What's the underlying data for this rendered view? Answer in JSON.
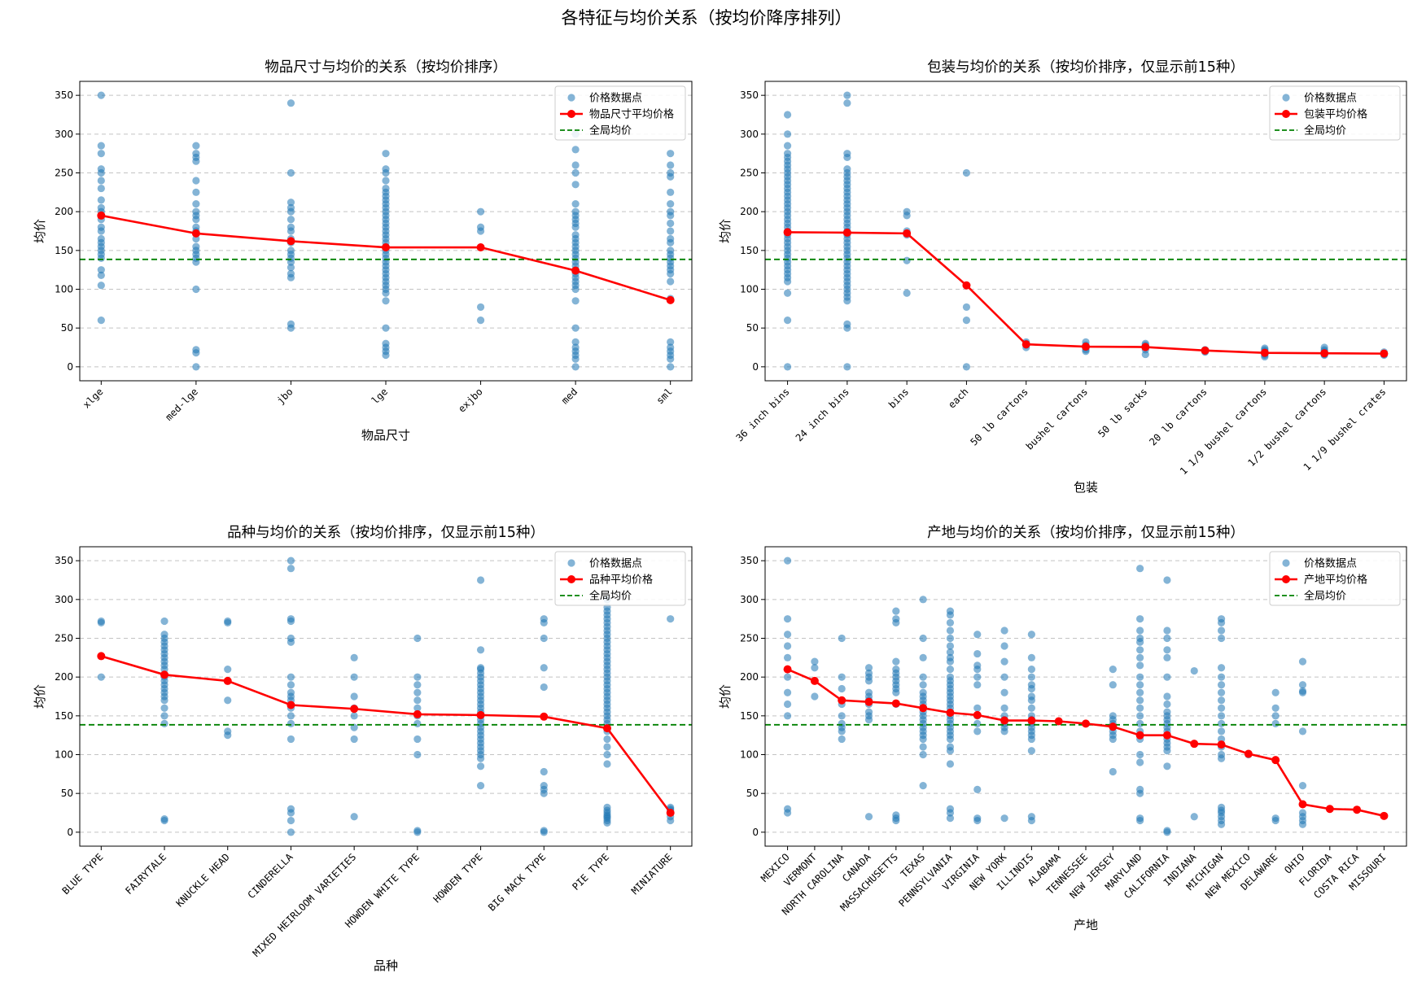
{
  "suptitle": "各特征与均价关系（按均价降序排列）",
  "colors": {
    "points": "#1f77b4",
    "mean_line": "#ff0000",
    "global_mean": "#008000",
    "grid": "#b0b0b0"
  },
  "chart_data": [
    {
      "type": "scatter",
      "title": "物品尺寸与均价的关系（按均价排序）",
      "xlabel": "物品尺寸",
      "ylabel": "均价",
      "ylim": [
        -18,
        368
      ],
      "yticks": [
        0,
        50,
        100,
        150,
        200,
        250,
        300,
        350
      ],
      "grid": "horizontal dashed",
      "legend_position": "upper right",
      "legend": [
        "价格数据点",
        "物品尺寸平均价格",
        "全局均价"
      ],
      "global_mean": 138.5,
      "categories": [
        "xlge",
        "med-lge",
        "jbo",
        "lge",
        "exjbo",
        "med",
        "sml"
      ],
      "mean_values": [
        195,
        172,
        162,
        154,
        154,
        124,
        86
      ],
      "points": [
        [
          350,
          285,
          275,
          255,
          250,
          240,
          230,
          215,
          205,
          200,
          195,
          190,
          180,
          175,
          165,
          160,
          155,
          150,
          145,
          140,
          125,
          118,
          105,
          60
        ],
        [
          285,
          275,
          270,
          265,
          240,
          225,
          210,
          200,
          195,
          190,
          180,
          175,
          165,
          155,
          150,
          145,
          140,
          135,
          100,
          22,
          18,
          0
        ],
        [
          340,
          250,
          212,
          205,
          200,
          190,
          180,
          175,
          165,
          160,
          150,
          145,
          140,
          135,
          128,
          120,
          115,
          55,
          50
        ],
        [
          275,
          255,
          250,
          240,
          230,
          225,
          220,
          215,
          210,
          205,
          200,
          195,
          190,
          185,
          180,
          175,
          170,
          165,
          160,
          155,
          150,
          145,
          140,
          135,
          130,
          125,
          120,
          115,
          110,
          105,
          100,
          95,
          85,
          50,
          30,
          25,
          20,
          15
        ],
        [
          200,
          180,
          175,
          77,
          60
        ],
        [
          300,
          280,
          260,
          250,
          235,
          210,
          200,
          195,
          190,
          185,
          180,
          170,
          165,
          160,
          155,
          150,
          145,
          140,
          135,
          130,
          125,
          120,
          115,
          110,
          105,
          100,
          85,
          50,
          32,
          25,
          20,
          15,
          10,
          0
        ],
        [
          275,
          260,
          250,
          245,
          225,
          210,
          200,
          195,
          185,
          175,
          165,
          160,
          150,
          145,
          140,
          135,
          130,
          125,
          120,
          110,
          88,
          32,
          25,
          20,
          15,
          10,
          0
        ]
      ]
    },
    {
      "type": "scatter",
      "title": "包装与均价的关系（按均价排序，仅显示前15种）",
      "xlabel": "包装",
      "ylabel": "均价",
      "ylim": [
        -18,
        368
      ],
      "yticks": [
        0,
        50,
        100,
        150,
        200,
        250,
        300,
        350
      ],
      "grid": "horizontal dashed",
      "legend_position": "upper right",
      "legend": [
        "价格数据点",
        "包装平均价格",
        "全局均价"
      ],
      "global_mean": 138.5,
      "categories": [
        "36 inch bins",
        "24 inch bins",
        "bins",
        "each",
        "50 lb cartons",
        "bushel cartons",
        "50 lb sacks",
        "20 lb cartons",
        "1 1/9 bushel cartons",
        "1/2 bushel cartons",
        "1 1/9 bushel crates"
      ],
      "mean_values": [
        173.5,
        173,
        172,
        105,
        29,
        26,
        25.5,
        21,
        18,
        17.5,
        17
      ],
      "points": [
        [
          325,
          300,
          285,
          275,
          270,
          265,
          260,
          255,
          250,
          245,
          240,
          235,
          230,
          225,
          220,
          215,
          210,
          205,
          200,
          195,
          190,
          185,
          180,
          175,
          170,
          165,
          160,
          155,
          150,
          145,
          140,
          135,
          130,
          125,
          120,
          115,
          110,
          95,
          60,
          0
        ],
        [
          350,
          340,
          275,
          270,
          255,
          250,
          245,
          240,
          235,
          230,
          225,
          220,
          215,
          210,
          205,
          200,
          195,
          190,
          185,
          180,
          175,
          170,
          165,
          160,
          155,
          150,
          145,
          140,
          135,
          130,
          125,
          120,
          115,
          110,
          105,
          100,
          95,
          90,
          85,
          55,
          50,
          0
        ],
        [
          200,
          195,
          175,
          170,
          137,
          95
        ],
        [
          250,
          77,
          60,
          0
        ],
        [
          32,
          30,
          28,
          25
        ],
        [
          32,
          28,
          25,
          22,
          20
        ],
        [
          30,
          28,
          25,
          22,
          16
        ],
        [
          22,
          20,
          19
        ],
        [
          24,
          22,
          20,
          17,
          15,
          13
        ],
        [
          25,
          22,
          20,
          18,
          16,
          15
        ],
        [
          19,
          17,
          16,
          15
        ]
      ]
    },
    {
      "type": "scatter",
      "title": "品种与均价的关系（按均价排序，仅显示前15种）",
      "xlabel": "品种",
      "ylabel": "均价",
      "ylim": [
        -18,
        368
      ],
      "yticks": [
        0,
        50,
        100,
        150,
        200,
        250,
        300,
        350
      ],
      "grid": "horizontal dashed",
      "legend_position": "upper right",
      "legend": [
        "价格数据点",
        "品种平均价格",
        "全局均价"
      ],
      "global_mean": 138.5,
      "categories": [
        "BLUE TYPE",
        "FAIRYTALE",
        "KNUCKLE HEAD",
        "CINDERELLA",
        "MIXED HEIRLOOM VARIETIES",
        "HOWDEN WHITE TYPE",
        "HOWDEN TYPE",
        "BIG MACK TYPE",
        "PIE TYPE",
        "MINIATURE"
      ],
      "mean_values": [
        227,
        203,
        195,
        164,
        159,
        152,
        151,
        149,
        134,
        25
      ],
      "points": [
        [
          272,
          270,
          200
        ],
        [
          272,
          255,
          250,
          245,
          240,
          235,
          230,
          225,
          220,
          215,
          210,
          200,
          195,
          190,
          185,
          180,
          175,
          170,
          160,
          150,
          140,
          17,
          15
        ],
        [
          272,
          270,
          210,
          170,
          130,
          125
        ],
        [
          350,
          340,
          275,
          272,
          250,
          245,
          200,
          190,
          180,
          175,
          170,
          160,
          150,
          140,
          120,
          30,
          25,
          15,
          0
        ],
        [
          225,
          200,
          175,
          160,
          150,
          135,
          120,
          20
        ],
        [
          250,
          200,
          190,
          180,
          170,
          160,
          150,
          140,
          120,
          100,
          2,
          0
        ],
        [
          325,
          235,
          212,
          210,
          205,
          200,
          195,
          190,
          185,
          180,
          175,
          170,
          165,
          160,
          155,
          150,
          145,
          140,
          135,
          130,
          125,
          120,
          115,
          110,
          105,
          100,
          95,
          85,
          60
        ],
        [
          275,
          270,
          250,
          212,
          187,
          78,
          60,
          55,
          50,
          2,
          0
        ],
        [
          300,
          290,
          285,
          280,
          275,
          270,
          265,
          260,
          255,
          250,
          245,
          240,
          235,
          230,
          225,
          220,
          215,
          210,
          205,
          200,
          195,
          190,
          185,
          180,
          175,
          170,
          165,
          160,
          155,
          150,
          145,
          140,
          135,
          130,
          120,
          110,
          100,
          88,
          32,
          28,
          25,
          22,
          20,
          18,
          15,
          12
        ],
        [
          275,
          32,
          30,
          28,
          25,
          20,
          15
        ]
      ]
    },
    {
      "type": "scatter",
      "title": "产地与均价的关系（按均价排序，仅显示前15种）",
      "xlabel": "产地",
      "ylabel": "均价",
      "ylim": [
        -18,
        368
      ],
      "yticks": [
        0,
        50,
        100,
        150,
        200,
        250,
        300,
        350
      ],
      "grid": "horizontal dashed",
      "legend_position": "upper right",
      "legend": [
        "价格数据点",
        "产地平均价格",
        "全局均价"
      ],
      "global_mean": 138.5,
      "categories": [
        "MEXICO",
        "VERMONT",
        "NORTH CAROLINA",
        "CANADA",
        "MASSACHUSETTS",
        "TEXAS",
        "PENNSYLVANIA",
        "VIRGINIA",
        "NEW YORK",
        "ILLINOIS",
        "ALABAMA",
        "TENNESSEE",
        "NEW JERSEY",
        "MARYLAND",
        "CALIFORNIA",
        "INDIANA",
        "MICHIGAN",
        "NEW MEXICO",
        "DELAWARE",
        "OHIO",
        "FLORIDA",
        "COSTA RICA",
        "MISSOURI"
      ],
      "mean_values": [
        210,
        195,
        170,
        168,
        166,
        160,
        154,
        151,
        144,
        144,
        143,
        140,
        136,
        125,
        125,
        114,
        113,
        101,
        93,
        36,
        30,
        29,
        21
      ],
      "points": [
        [
          350,
          275,
          255,
          240,
          225,
          210,
          200,
          180,
          165,
          150,
          30,
          25
        ],
        [
          220,
          212,
          175
        ],
        [
          250,
          200,
          185,
          165,
          150,
          140,
          135,
          130,
          120
        ],
        [
          212,
          205,
          200,
          195,
          180,
          175,
          170,
          165,
          155,
          150,
          145,
          20
        ],
        [
          285,
          275,
          270,
          220,
          210,
          205,
          200,
          195,
          190,
          185,
          180,
          165,
          22,
          18,
          15
        ],
        [
          300,
          250,
          225,
          200,
          190,
          180,
          175,
          170,
          165,
          160,
          155,
          150,
          145,
          140,
          135,
          130,
          125,
          120,
          110,
          100,
          60
        ],
        [
          285,
          280,
          270,
          260,
          250,
          240,
          232,
          225,
          220,
          210,
          200,
          195,
          190,
          185,
          180,
          175,
          170,
          165,
          160,
          155,
          150,
          145,
          140,
          135,
          130,
          125,
          120,
          110,
          105,
          88,
          30,
          25,
          18
        ],
        [
          255,
          230,
          215,
          210,
          200,
          190,
          160,
          150,
          140,
          130,
          55,
          18,
          15
        ],
        [
          260,
          240,
          220,
          200,
          180,
          160,
          150,
          145,
          140,
          135,
          130,
          18
        ],
        [
          255,
          225,
          210,
          200,
          190,
          185,
          175,
          170,
          160,
          150,
          145,
          140,
          135,
          130,
          125,
          120,
          105,
          20,
          15
        ],
        [
          143
        ],
        [
          140
        ],
        [
          210,
          190,
          150,
          145,
          140,
          135,
          130,
          125,
          120,
          78
        ],
        [
          340,
          275,
          260,
          250,
          245,
          235,
          225,
          215,
          200,
          190,
          180,
          170,
          160,
          150,
          140,
          130,
          125,
          120,
          100,
          90,
          55,
          50,
          18,
          15
        ],
        [
          325,
          260,
          250,
          235,
          225,
          200,
          175,
          165,
          155,
          150,
          145,
          140,
          135,
          130,
          125,
          120,
          115,
          110,
          105,
          85,
          2,
          0
        ],
        [
          208,
          20
        ],
        [
          275,
          270,
          260,
          250,
          212,
          200,
          190,
          180,
          170,
          160,
          150,
          140,
          130,
          120,
          110,
          100,
          95,
          32,
          28,
          25,
          20,
          15,
          10
        ],
        [
          100
        ],
        [
          180,
          160,
          150,
          140,
          18,
          15
        ],
        [
          220,
          190,
          182,
          180,
          130,
          60,
          25,
          20,
          15,
          10
        ],
        [
          30
        ],
        [
          29
        ],
        [
          21
        ]
      ]
    }
  ]
}
